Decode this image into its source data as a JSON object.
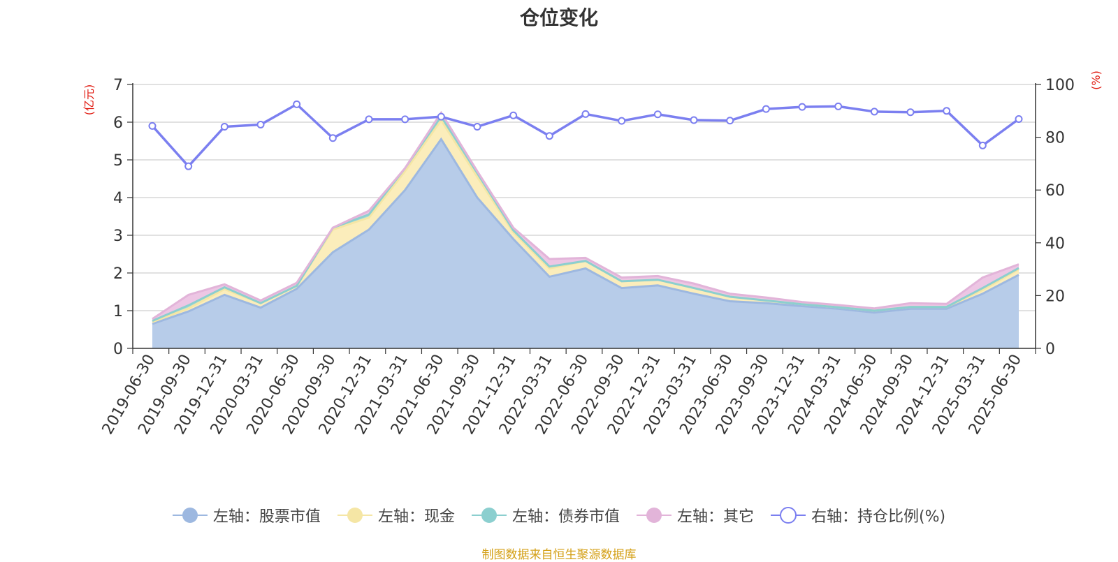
{
  "chart_data": {
    "type": "area",
    "title": "仓位变化",
    "left_axis_unit": "(亿元)",
    "right_axis_unit": "(%)",
    "left_ylim": [
      0,
      7
    ],
    "left_ticks": [
      0,
      1,
      2,
      3,
      4,
      5,
      6,
      7
    ],
    "right_ylim": [
      0,
      100
    ],
    "right_ticks": [
      0,
      20,
      40,
      60,
      80,
      100
    ],
    "grid": true,
    "legend_position": "bottom",
    "categories": [
      "2019-06-30",
      "2019-09-30",
      "2019-12-31",
      "2020-03-31",
      "2020-06-30",
      "2020-09-30",
      "2020-12-31",
      "2021-03-31",
      "2021-06-30",
      "2021-09-30",
      "2021-12-31",
      "2022-03-31",
      "2022-06-30",
      "2022-09-30",
      "2022-12-31",
      "2023-03-31",
      "2023-06-30",
      "2023-09-30",
      "2023-12-31",
      "2024-03-31",
      "2024-06-30",
      "2024-09-30",
      "2024-12-31",
      "2025-03-31",
      "2025-06-30"
    ],
    "series": [
      {
        "name": "左轴：股票市值",
        "axis": "left",
        "kind": "stacked-area",
        "color": "#9db8e0",
        "fill": "#b7cce9",
        "values": [
          0.65,
          0.98,
          1.42,
          1.08,
          1.58,
          2.55,
          3.15,
          4.2,
          5.55,
          4.0,
          2.9,
          1.9,
          2.12,
          1.6,
          1.67,
          1.45,
          1.25,
          1.2,
          1.12,
          1.05,
          0.95,
          1.05,
          1.05,
          1.45,
          1.95
        ]
      },
      {
        "name": "左轴：现金",
        "axis": "left",
        "kind": "stacked-area",
        "color": "#f5e6a5",
        "fill": "#fbedbb",
        "values": [
          0.05,
          0.08,
          0.15,
          0.12,
          0.08,
          0.6,
          0.32,
          0.5,
          0.5,
          0.55,
          0.18,
          0.22,
          0.2,
          0.18,
          0.15,
          0.15,
          0.12,
          0.07,
          0.05,
          0.04,
          0.05,
          0.05,
          0.05,
          0.1,
          0.15
        ]
      },
      {
        "name": "左轴：债券市值",
        "axis": "left",
        "kind": "stacked-area",
        "color": "#8ccfcf",
        "fill": "#a8dcd9",
        "values": [
          0.03,
          0.08,
          0.05,
          0.0,
          0.0,
          0.05,
          0.08,
          0.08,
          0.1,
          0.1,
          0.05,
          0.05,
          0.0,
          0.0,
          0.0,
          0.0,
          0.0,
          0.0,
          0.0,
          0.0,
          0.0,
          0.0,
          0.0,
          0.05,
          0.03
        ]
      },
      {
        "name": "左轴：其它",
        "axis": "left",
        "kind": "stacked-area",
        "color": "#e2b4d9",
        "fill": "#edc6e4",
        "values": [
          0.05,
          0.28,
          0.08,
          0.07,
          0.08,
          0.0,
          0.1,
          0.0,
          0.1,
          0.05,
          0.07,
          0.2,
          0.08,
          0.1,
          0.1,
          0.12,
          0.08,
          0.08,
          0.06,
          0.06,
          0.06,
          0.1,
          0.08,
          0.28,
          0.1
        ]
      },
      {
        "name": "右轴：持仓比例(%)",
        "axis": "right",
        "kind": "line",
        "color": "#7b7ff0",
        "values": [
          84.3,
          69.0,
          84.0,
          84.8,
          92.5,
          79.7,
          86.8,
          86.8,
          87.8,
          84.0,
          88.3,
          80.5,
          88.8,
          86.2,
          88.7,
          86.5,
          86.3,
          90.7,
          91.5,
          91.7,
          89.7,
          89.5,
          90.0,
          76.9,
          86.9
        ]
      }
    ]
  },
  "source_text": "制图数据来自恒生聚源数据库"
}
